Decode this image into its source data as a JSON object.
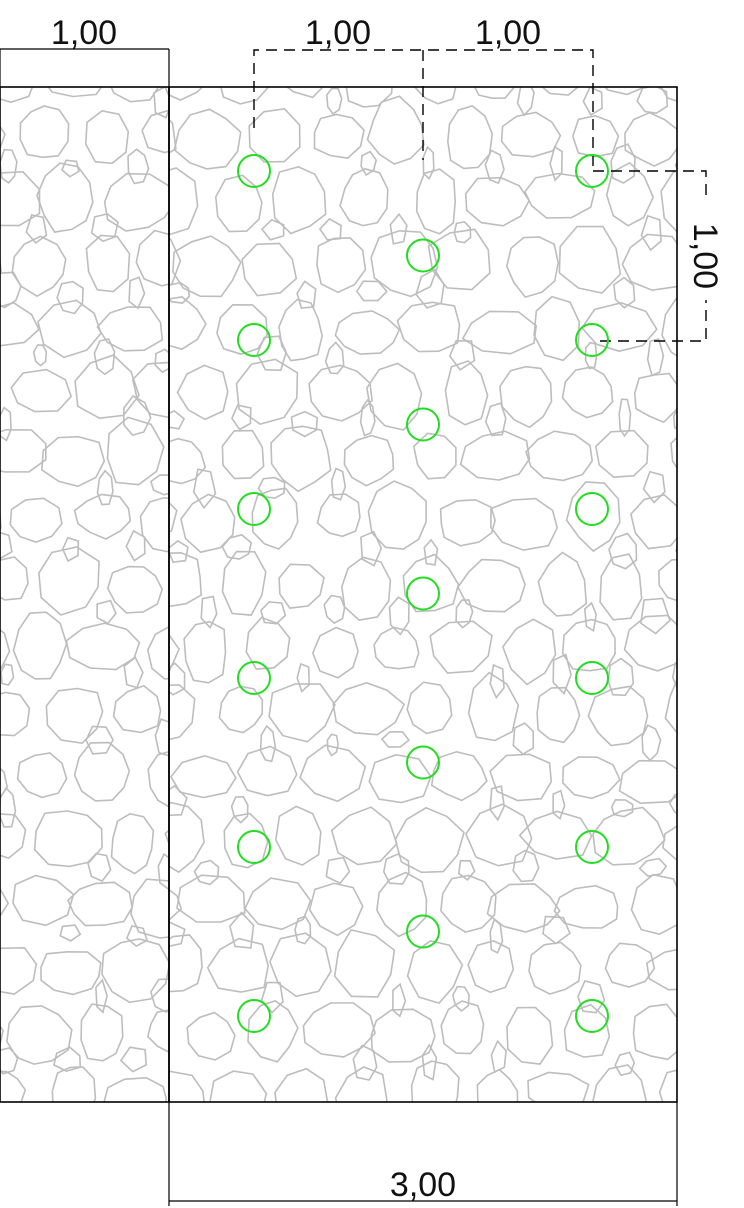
{
  "dimensions": {
    "top_left_width": "1,00",
    "top_spacing_1": "1,00",
    "top_spacing_2": "1,00",
    "right_row_spacing": "1,00",
    "bottom_total_width": "3,00"
  },
  "colors": {
    "outline": "#000000",
    "stone_hatch": "#bdbdbd",
    "planting_marker": "#22dd22"
  },
  "markers": {
    "grid_columns": 3,
    "column_spacing_m": 1.0,
    "row_spacing_m": 1.0,
    "left_column_count": 6,
    "middle_column_count": 5,
    "right_column_count": 6
  }
}
